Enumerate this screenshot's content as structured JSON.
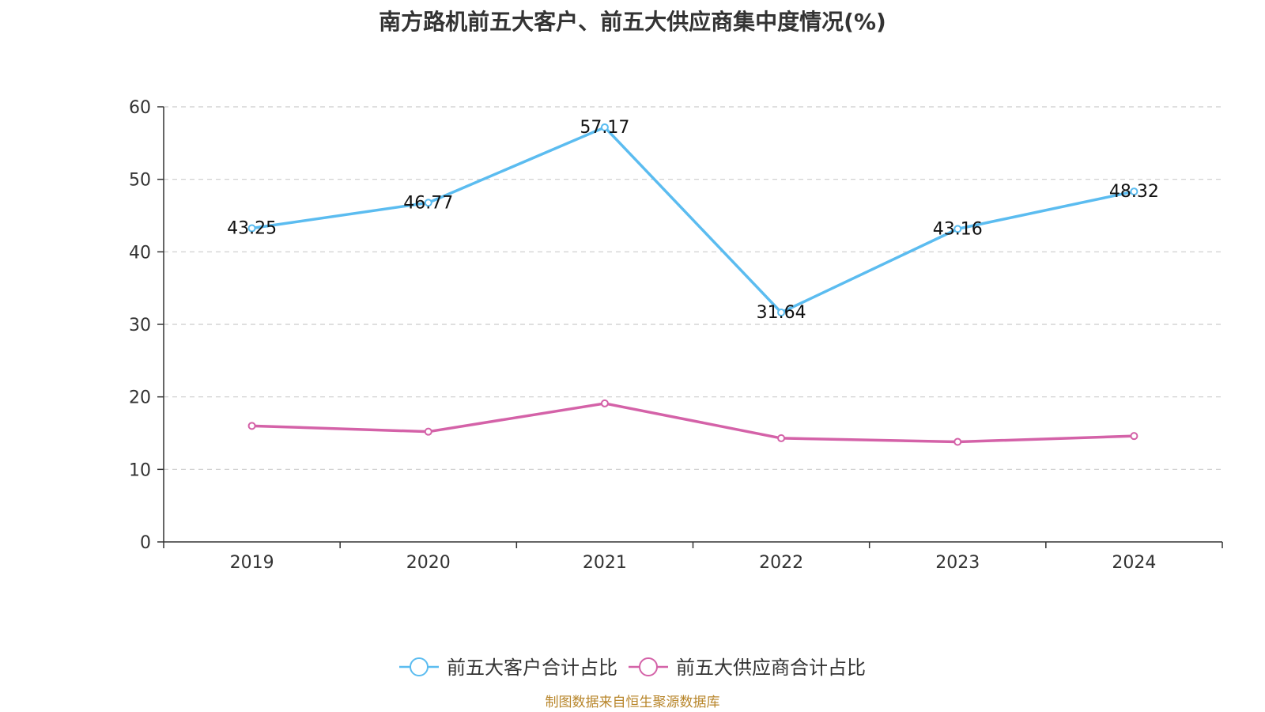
{
  "chart_data": {
    "type": "line",
    "title": "南方路机前五大客户、前五大供应商集中度情况(%)",
    "categories": [
      "2019",
      "2020",
      "2021",
      "2022",
      "2023",
      "2024"
    ],
    "ylim": [
      0,
      60
    ],
    "yticks": [
      0,
      10,
      20,
      30,
      40,
      50,
      60
    ],
    "grid": true,
    "legend_position": "bottom-center",
    "series": [
      {
        "name": "前五大客户合计占比",
        "values": [
          43.25,
          46.77,
          57.17,
          31.64,
          43.16,
          48.32
        ],
        "labels": [
          "43.25",
          "46.77",
          "57.17",
          "31.64",
          "43.16",
          "48.32"
        ],
        "show_labels": true,
        "color": "#5bbcf0"
      },
      {
        "name": "前五大供应商合计占比",
        "values": [
          16.0,
          15.2,
          19.1,
          14.3,
          13.8,
          14.6
        ],
        "show_labels": false,
        "color": "#d462a8"
      }
    ]
  },
  "source_note": "制图数据来自恒生聚源数据库",
  "colors": {
    "title": "#333333",
    "source_note": "#b8862b",
    "grid": "#cccccc",
    "axis": "#333333"
  }
}
